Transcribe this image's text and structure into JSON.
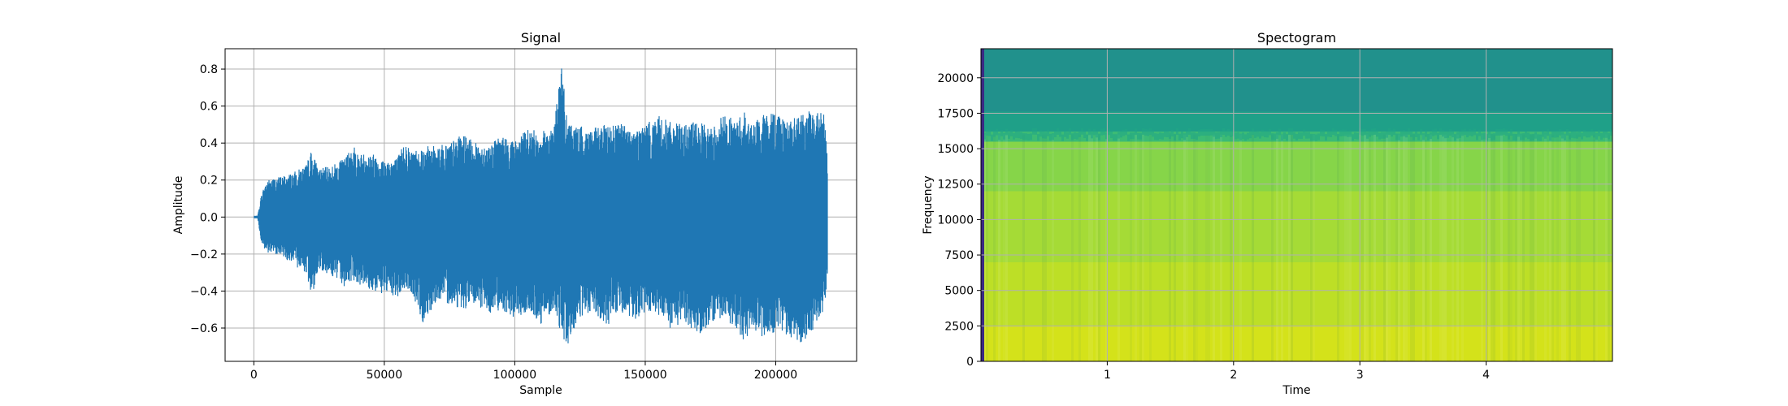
{
  "chart_data": [
    {
      "type": "line",
      "title": "Signal",
      "xlabel": "Sample",
      "ylabel": "Amplitude",
      "xlim": [
        -11000,
        231000
      ],
      "ylim": [
        -0.78,
        0.91
      ],
      "xticks": [
        0,
        50000,
        100000,
        150000,
        200000
      ],
      "xtick_labels": [
        "0",
        "50000",
        "100000",
        "150000",
        "200000"
      ],
      "yticks": [
        -0.6,
        -0.4,
        -0.2,
        0.0,
        0.2,
        0.4,
        0.6,
        0.8
      ],
      "ytick_labels": [
        "−0.6",
        "−0.4",
        "−0.2",
        "0.0",
        "0.2",
        "0.4",
        "0.6",
        "0.8"
      ],
      "grid": true,
      "color": "#1f77b4",
      "series": [
        {
          "x": [
            0,
            1500,
            3000,
            5000,
            10000,
            15000,
            20000,
            22000,
            25000,
            30000,
            35000,
            38000,
            40000,
            45000,
            50000,
            55000,
            58000,
            60000,
            65000,
            70000,
            75000,
            80000,
            85000,
            90000,
            95000,
            100000,
            105000,
            110000,
            115000,
            118000,
            120000,
            125000,
            130000,
            135000,
            140000,
            145000,
            150000,
            155000,
            160000,
            165000,
            170000,
            175000,
            180000,
            185000,
            188000,
            190000,
            195000,
            200000,
            205000,
            210000,
            215000,
            219000,
            220000
          ],
          "max": [
            0.0,
            0.01,
            0.13,
            0.2,
            0.22,
            0.24,
            0.28,
            0.36,
            0.26,
            0.28,
            0.32,
            0.4,
            0.34,
            0.35,
            0.31,
            0.32,
            0.42,
            0.36,
            0.38,
            0.39,
            0.4,
            0.45,
            0.4,
            0.39,
            0.44,
            0.41,
            0.48,
            0.46,
            0.5,
            0.84,
            0.52,
            0.49,
            0.48,
            0.5,
            0.52,
            0.47,
            0.5,
            0.55,
            0.51,
            0.5,
            0.52,
            0.48,
            0.56,
            0.52,
            0.58,
            0.5,
            0.55,
            0.58,
            0.52,
            0.56,
            0.58,
            0.56,
            0.25
          ],
          "min": [
            0.0,
            -0.01,
            -0.15,
            -0.2,
            -0.2,
            -0.26,
            -0.3,
            -0.44,
            -0.28,
            -0.32,
            -0.38,
            -0.34,
            -0.36,
            -0.4,
            -0.42,
            -0.44,
            -0.39,
            -0.4,
            -0.58,
            -0.45,
            -0.47,
            -0.5,
            -0.48,
            -0.52,
            -0.5,
            -0.55,
            -0.52,
            -0.58,
            -0.5,
            -0.64,
            -0.7,
            -0.55,
            -0.52,
            -0.6,
            -0.5,
            -0.58,
            -0.52,
            -0.54,
            -0.62,
            -0.56,
            -0.64,
            -0.58,
            -0.55,
            -0.6,
            -0.7,
            -0.6,
            -0.66,
            -0.62,
            -0.65,
            -0.68,
            -0.6,
            -0.5,
            -0.35
          ]
        }
      ]
    },
    {
      "type": "heatmap",
      "title": "Spectogram",
      "xlabel": "Time",
      "ylabel": "Frequency",
      "xlim": [
        0,
        5.0
      ],
      "ylim": [
        0,
        22050
      ],
      "xticks": [
        1,
        2,
        3,
        4
      ],
      "xtick_labels": [
        "1",
        "2",
        "3",
        "4"
      ],
      "yticks": [
        0,
        2500,
        5000,
        7500,
        10000,
        12500,
        15000,
        17500,
        20000
      ],
      "ytick_labels": [
        "0",
        "2500",
        "5000",
        "7500",
        "10000",
        "12500",
        "15000",
        "17500",
        "20000"
      ],
      "grid": true,
      "colormap": "viridis",
      "cutoff_frequency": 16000,
      "bands": [
        {
          "from": 0,
          "to": 2500,
          "color": "#d4e21a"
        },
        {
          "from": 2500,
          "to": 7000,
          "color": "#bddf26"
        },
        {
          "from": 7000,
          "to": 12000,
          "color": "#a5db36"
        },
        {
          "from": 12000,
          "to": 15500,
          "color": "#86d549"
        },
        {
          "from": 15500,
          "to": 16200,
          "color": "#3cbb75"
        },
        {
          "from": 16200,
          "to": 17600,
          "color": "#1fa088"
        },
        {
          "from": 17600,
          "to": 22050,
          "color": "#21918c"
        }
      ]
    }
  ]
}
